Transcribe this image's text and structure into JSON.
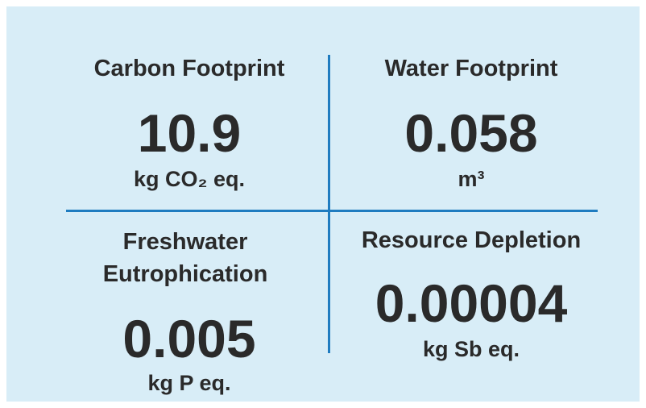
{
  "panels": [
    {
      "title": "Carbon Footprint",
      "value": "10.9",
      "unit": "kg CO₂ eq."
    },
    {
      "title": "Water Footprint",
      "value": "0.058",
      "unit": "m³"
    },
    {
      "title": "Freshwater Eutrophication",
      "value": "0.005",
      "unit": "kg P eq."
    },
    {
      "title": "Resource Depletion",
      "value": "0.00004",
      "unit": "kg Sb eq."
    }
  ]
}
